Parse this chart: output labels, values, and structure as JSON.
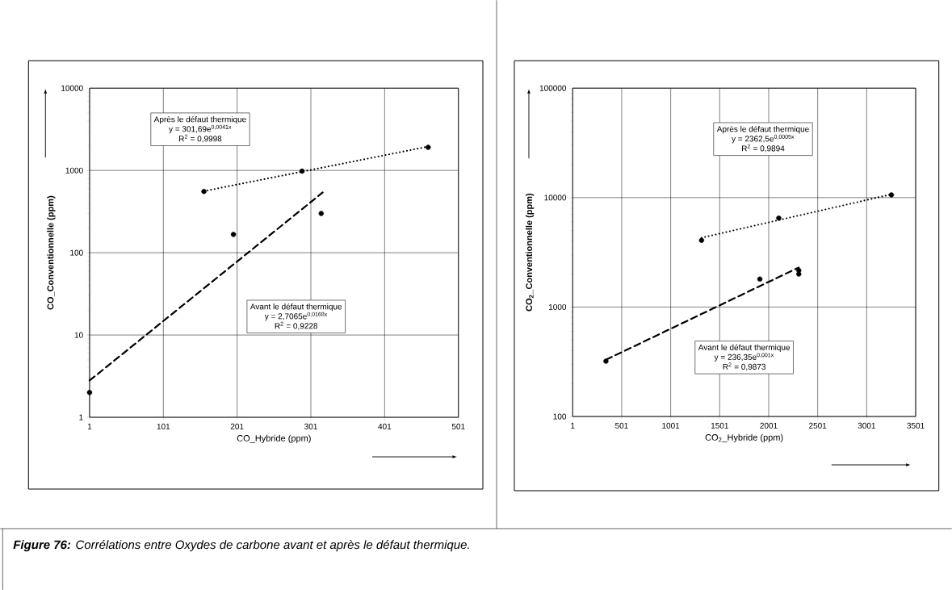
{
  "chart_data": [
    {
      "type": "scatter",
      "xlabel": "CO_Hybride (ppm)",
      "ylabel": "CO_Conventionnelle (ppm)",
      "log": "y",
      "grid": true,
      "xlim": [
        1,
        501
      ],
      "ylim": [
        1,
        10000
      ],
      "xticks": [
        1,
        101,
        201,
        301,
        401,
        501
      ],
      "yticks": [
        1,
        10,
        100,
        1000,
        10000
      ],
      "series": [
        {
          "type": "line",
          "line_style": "dashed",
          "marker": "none",
          "color": "#000000",
          "x": [
            1,
            317
          ],
          "values": [
            2.8,
            540
          ]
        },
        {
          "type": "line",
          "line_style": "dotted",
          "marker": "none",
          "color": "#000000",
          "x": [
            156,
            460
          ],
          "values": [
            560,
            1950
          ]
        },
        {
          "marker": "circle",
          "color": "#000000",
          "x": [
            1,
            196,
            315
          ],
          "values": [
            2,
            167,
            300
          ]
        },
        {
          "marker": "circle",
          "color": "#000000",
          "x": [
            156,
            289,
            460
          ],
          "values": [
            556,
            980,
            1910
          ]
        }
      ],
      "annotations": [
        "Après le défaut thermique",
        "y = 301,69e$^{0,0041x}$",
        "R$^{2}$ = 0,9998",
        "Avant le défaut thermique",
        "y = 2,7065e$^{0,0168x}$",
        "R$^{2}$ = 0,9228",
        "**Figure 76:** Corrélations entre Oxydes de carbone avant et après le défaut thermique."
      ]
    },
    {
      "type": "scatter",
      "xlabel": "CO$_{2}$_Hybride (ppm)",
      "ylabel": "CO$_{2}$_Conventionnelle (ppm)",
      "log": "y",
      "grid": true,
      "xlim": [
        1,
        3501
      ],
      "ylim": [
        100,
        100000
      ],
      "xticks": [
        1,
        501,
        1001,
        1501,
        2001,
        2501,
        3001,
        3501
      ],
      "yticks": [
        100,
        1000,
        10000,
        100000
      ],
      "series": [
        {
          "type": "line",
          "line_style": "dashed",
          "marker": "none",
          "color": "#000000",
          "x": [
            340,
            2308
          ],
          "values": [
            330,
            2300
          ]
        },
        {
          "type": "line",
          "line_style": "dotted",
          "marker": "none",
          "color": "#000000",
          "x": [
            1316,
            3253
          ],
          "values": [
            4300,
            10700
          ]
        },
        {
          "marker": "circle",
          "color": "#000000",
          "x": [
            340,
            1911,
            2308,
            2308
          ],
          "values": [
            320,
            1800,
            2160,
            2000
          ]
        },
        {
          "marker": "circle",
          "color": "#000000",
          "x": [
            1316,
            2104,
            3253
          ],
          "values": [
            4070,
            6500,
            10600
          ]
        }
      ],
      "annotations": [
        "Après le défaut thermique",
        "y = 2362,5e$^{0,0005x}$",
        "R$^{2}$ = 0,9894",
        "Avant le défaut thermique",
        "y = 236,35e$^{0,001x}$",
        "R$^{2}$ = 0,9873"
      ]
    }
  ]
}
